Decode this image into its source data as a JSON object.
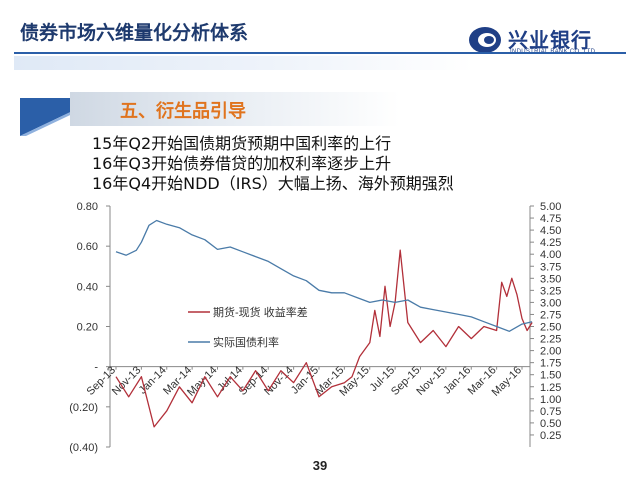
{
  "header": {
    "title": "债券市场六维量化分析体系",
    "logo_cn": "兴业银行",
    "logo_en": "INDUSTRIAL BANK CO.,LTD."
  },
  "section": {
    "title": "五、衍生品引导"
  },
  "bullets": [
    "15年Q2开始国债期货预期中国利率的上行",
    "16年Q3开始债券借贷的加权利率逐步上升",
    "16年Q4开始NDD（IRS）大幅上扬、海外预期强烈"
  ],
  "page_number": "39",
  "colors": {
    "spread_series": "#b2303a",
    "yield_series": "#4a7ba8",
    "title": "#1e3a6e",
    "section": "#e0741e",
    "accent_blue": "#2b5fa8"
  },
  "chart_data": {
    "type": "line",
    "x_tick_labels": [
      "Sep-13",
      "Nov-13",
      "Jan-14",
      "Mar-14",
      "May-14",
      "Jul-14",
      "Sep-14",
      "Nov-14",
      "Jan-15",
      "Mar-15",
      "May-15",
      "Jul-15",
      "Sep-15",
      "Nov-15",
      "Jan-16",
      "Mar-16",
      "May-16"
    ],
    "y_left": {
      "ticks": [
        -0.4,
        -0.2,
        0,
        0.2,
        0.4,
        0.6,
        0.8
      ],
      "tick_labels": [
        "(0.40)",
        "(0.20)",
        "-",
        "0.20",
        "0.40",
        "0.60",
        "0.80"
      ],
      "range": [
        -0.4,
        0.8
      ]
    },
    "y_right": {
      "ticks": [
        0.25,
        0.5,
        0.75,
        1.0,
        1.25,
        1.5,
        1.75,
        2.0,
        2.25,
        2.5,
        2.75,
        3.0,
        3.25,
        3.5,
        3.75,
        4.0,
        4.25,
        4.5,
        4.75,
        5.0
      ],
      "tick_labels": [
        "0.25",
        "0.50",
        "0.75",
        "1.00",
        "1.25",
        "1.50",
        "1.75",
        "2.00",
        "2.25",
        "2.50",
        "2.75",
        "3.00",
        "3.25",
        "3.50",
        "3.75",
        "4.00",
        "4.25",
        "4.50",
        "4.75",
        "5.00"
      ],
      "range": [
        0.0,
        5.0
      ]
    },
    "legend_position": "center-left",
    "grid": false,
    "series": [
      {
        "name": "期货-现货 收益率差",
        "axis": "left",
        "x": [
          0.0,
          0.5,
          1.0,
          1.5,
          2.0,
          2.5,
          3.0,
          3.5,
          4.0,
          4.5,
          5.0,
          5.5,
          6.0,
          6.5,
          7.0,
          7.5,
          8.0,
          8.5,
          9.0,
          9.3,
          9.6,
          10.0,
          10.2,
          10.4,
          10.6,
          10.8,
          11.0,
          11.2,
          11.5,
          12.0,
          12.5,
          13.0,
          13.5,
          14.0,
          14.5,
          15.0,
          15.2,
          15.4,
          15.6,
          15.8,
          16.0,
          16.2,
          16.4
        ],
        "values": [
          -0.05,
          -0.15,
          -0.05,
          -0.3,
          -0.22,
          -0.1,
          -0.18,
          -0.05,
          -0.15,
          -0.05,
          -0.12,
          -0.02,
          -0.12,
          -0.02,
          -0.08,
          0.02,
          -0.15,
          -0.1,
          -0.08,
          -0.05,
          0.05,
          0.12,
          0.28,
          0.15,
          0.4,
          0.2,
          0.32,
          0.58,
          0.22,
          0.12,
          0.18,
          0.1,
          0.2,
          0.14,
          0.2,
          0.18,
          0.42,
          0.35,
          0.44,
          0.36,
          0.24,
          0.18,
          0.22
        ]
      },
      {
        "name": "实际国债利率",
        "axis": "right",
        "x": [
          0.0,
          0.4,
          0.8,
          1.0,
          1.3,
          1.6,
          2.0,
          2.5,
          3.0,
          3.5,
          4.0,
          4.5,
          5.0,
          5.5,
          6.0,
          6.5,
          7.0,
          7.5,
          8.0,
          8.5,
          9.0,
          9.5,
          10.0,
          10.5,
          11.0,
          11.5,
          12.0,
          12.5,
          13.0,
          13.5,
          14.0,
          14.5,
          15.0,
          15.5,
          16.0,
          16.4
        ],
        "values": [
          4.05,
          3.98,
          4.08,
          4.25,
          4.6,
          4.7,
          4.62,
          4.55,
          4.4,
          4.3,
          4.1,
          4.15,
          4.05,
          3.95,
          3.85,
          3.7,
          3.55,
          3.45,
          3.25,
          3.2,
          3.2,
          3.1,
          3.0,
          3.05,
          3.0,
          3.05,
          2.9,
          2.85,
          2.8,
          2.75,
          2.7,
          2.6,
          2.5,
          2.4,
          2.55,
          2.6
        ]
      }
    ]
  }
}
